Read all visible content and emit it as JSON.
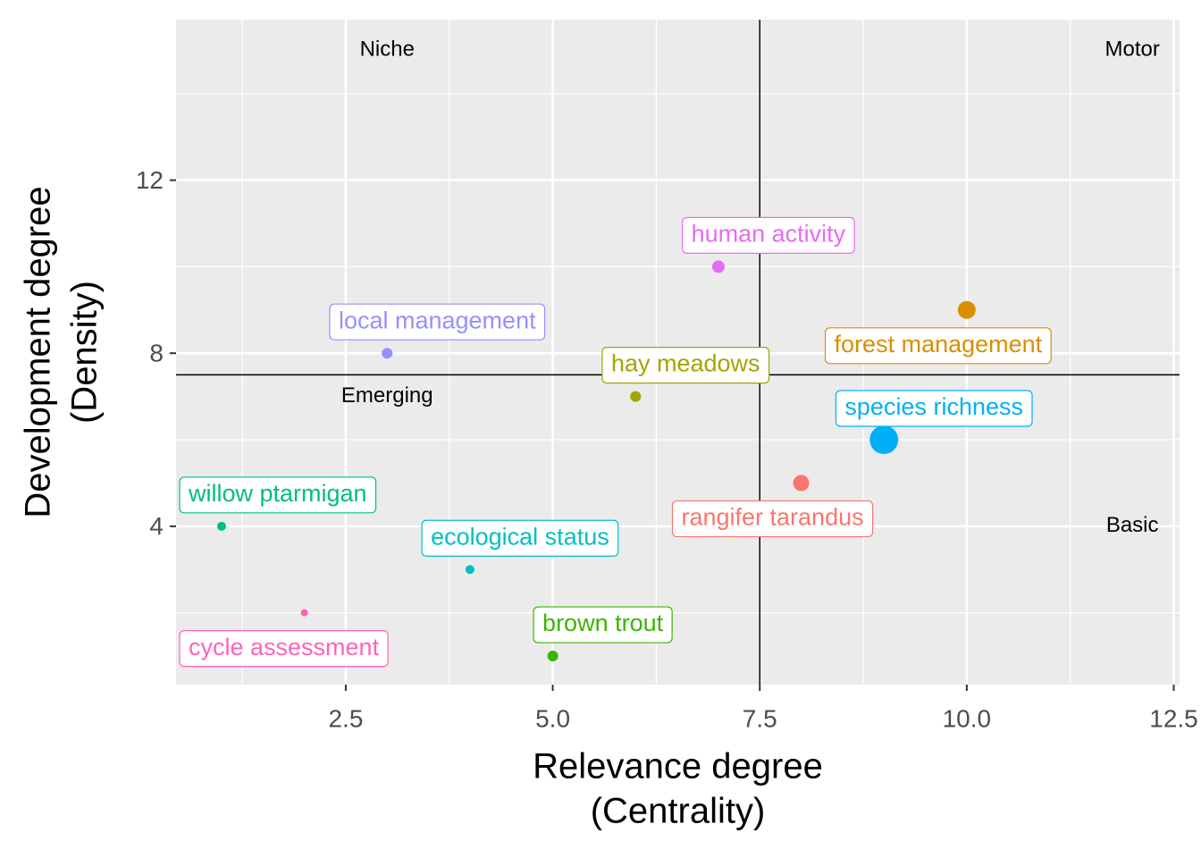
{
  "chart_data": {
    "type": "scatter",
    "xlabel": [
      "Relevance degree",
      "(Centrality)"
    ],
    "ylabel": [
      "Development degree",
      "(Density)"
    ],
    "labels": [
      "willow ptarmigan",
      "cycle assessment",
      "local management",
      "ecological status",
      "brown trout",
      "hay meadows",
      "human activity",
      "rangifer tarandus",
      "species richness",
      "forest management"
    ],
    "x": [
      1,
      2,
      3,
      4,
      5,
      6,
      7,
      8,
      9,
      10
    ],
    "values": [
      4,
      2,
      8,
      3,
      1,
      7,
      10,
      5,
      6,
      9
    ],
    "sizes": [
      5,
      4,
      6,
      5,
      6,
      6,
      7,
      9,
      16,
      10
    ],
    "colors": [
      "#00BF7D",
      "#FF62BC",
      "#9590FF",
      "#00BFC4",
      "#39B600",
      "#A3A500",
      "#E76BF3",
      "#F8766D",
      "#00B0F6",
      "#D89000"
    ],
    "label_side": [
      "above",
      "below",
      "above",
      "above",
      "above",
      "above",
      "above",
      "below",
      "above",
      "below"
    ],
    "xlim": [
      0.45,
      12.57
    ],
    "ylim": [
      0.34,
      15.71
    ],
    "xticks": [
      2.5,
      {
        "value": 5,
        "label": "5.0"
      },
      7.5,
      {
        "value": 10,
        "label": "10.0"
      },
      12.5
    ],
    "yticks": [
      4,
      8,
      12
    ],
    "minor_xticks": [
      1.25,
      3.75,
      6.25,
      8.75,
      11.25
    ],
    "minor_yticks": [
      2,
      6,
      10,
      14
    ],
    "hline": 7.5,
    "vline": 7.5,
    "quadrants": [
      {
        "label": "Niche",
        "x": 3,
        "y": 15
      },
      {
        "label": "Motor",
        "x": 12,
        "y": 15
      },
      {
        "label": "Emerging",
        "x": 3,
        "y": 7
      },
      {
        "label": "Basic",
        "x": 12,
        "y": 4
      }
    ],
    "grid": true
  }
}
